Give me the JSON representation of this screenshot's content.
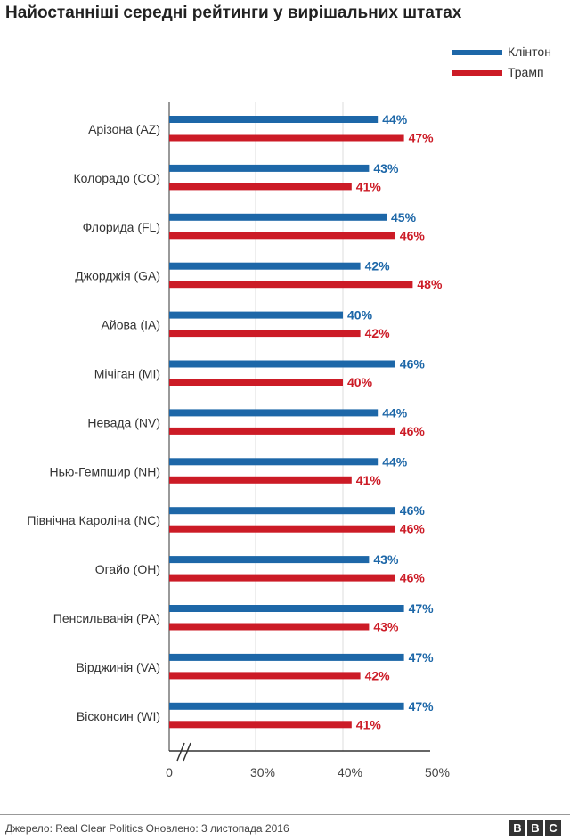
{
  "chart_data": {
    "type": "bar",
    "title": "Найостанніші середні рейтинги у вирішальних штатах",
    "categories": [
      "Арізона (AZ)",
      "Колорадо (CO)",
      "Флорида (FL)",
      "Джорджія (GA)",
      "Айова (IA)",
      "Мічіган (MI)",
      "Невада (NV)",
      "Нью-Гемпшир (NH)",
      "Північна Кароліна (NC)",
      "Огайо (OH)",
      "Пенсильванія (PA)",
      "Вірджинія (VA)",
      "Вісконсин (WI)"
    ],
    "series": [
      {
        "name": "Клінтон",
        "color": "#1d67a8",
        "values": [
          44,
          43,
          45,
          42,
          40,
          46,
          44,
          44,
          46,
          43,
          47,
          47,
          47
        ]
      },
      {
        "name": "Трамп",
        "color": "#cc1b26",
        "values": [
          47,
          41,
          46,
          48,
          42,
          40,
          46,
          41,
          46,
          46,
          43,
          42,
          41
        ]
      }
    ],
    "xticks": [
      "0",
      "30%",
      "40%",
      "50%"
    ],
    "xlim": [
      0,
      50
    ],
    "axis_break": true,
    "grid": true,
    "legend_position": "top-right"
  },
  "footer": {
    "source": "Джерело: Real Clear Politics Оновлено: 3 листопада 2016",
    "logo": "BBC"
  }
}
